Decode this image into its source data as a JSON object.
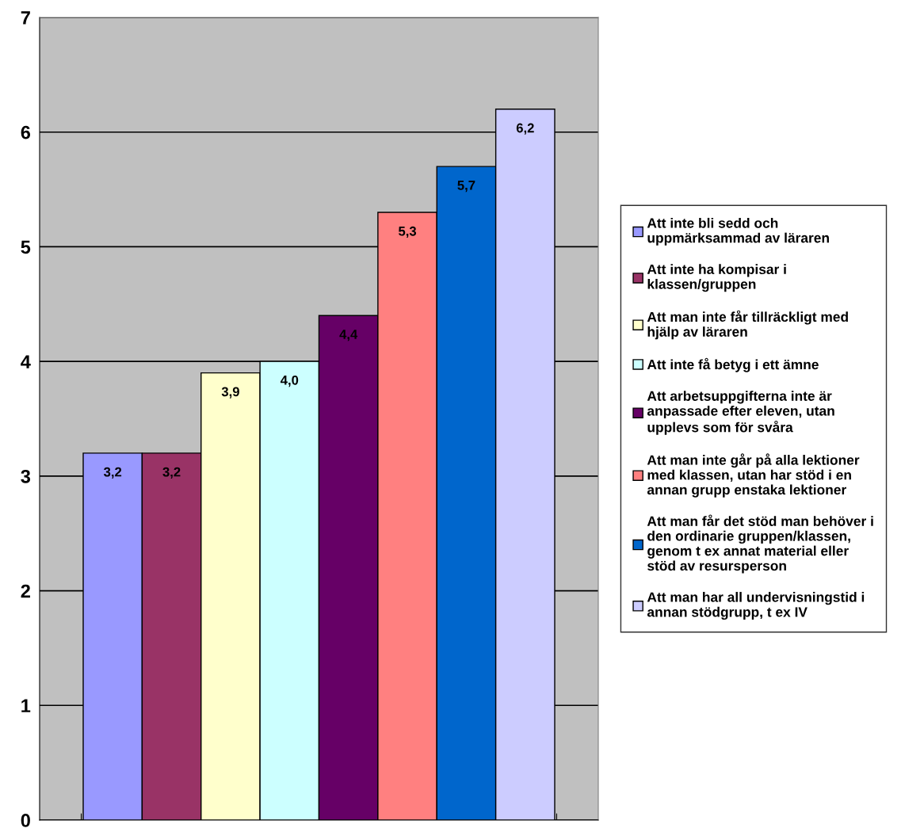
{
  "chart_data": {
    "type": "bar",
    "categories": [
      null
    ],
    "series": [
      {
        "name": "Att inte bli sedd och\nuppmärksammad av läraren",
        "color": "#9999ff",
        "values": [
          3.2
        ],
        "value_labels": [
          "3,2"
        ]
      },
      {
        "name": "Att inte ha kompisar i\nklassen/gruppen",
        "color": "#993366",
        "values": [
          3.2
        ],
        "value_labels": [
          "3,2"
        ]
      },
      {
        "name": "Att man inte får tillräckligt med\nhjälp av läraren",
        "color": "#ffffcc",
        "values": [
          3.9
        ],
        "value_labels": [
          "3,9"
        ]
      },
      {
        "name": "Att inte få betyg i ett ämne",
        "color": "#ccffff",
        "values": [
          4.0
        ],
        "value_labels": [
          "4,0"
        ]
      },
      {
        "name": "Att arbetsuppgifterna inte är\nanpassade efter eleven, utan\nupplevs som för svåra",
        "color": "#660066",
        "values": [
          4.4
        ],
        "value_labels": [
          "4,4"
        ]
      },
      {
        "name": "Att man inte går på alla lektioner\nmed klassen, utan har stöd i en\nannan grupp enstaka lektioner",
        "color": "#ff8080",
        "values": [
          5.3
        ],
        "value_labels": [
          "5,3"
        ]
      },
      {
        "name": "Att man får det stöd man behöver i\nden ordinarie gruppen/klassen,\ngenom t ex annat material eller\nstöd av resursperson",
        "color": "#0066cc",
        "values": [
          5.7
        ],
        "value_labels": [
          "5,7"
        ]
      },
      {
        "name": "Att man har all undervisningstid i\nannan stödgrupp, t ex IV",
        "color": "#ccccff",
        "values": [
          6.2
        ],
        "value_labels": [
          "6,2"
        ]
      }
    ],
    "ylim": [
      0,
      7
    ],
    "yticks": [
      0,
      1,
      2,
      3,
      4,
      5,
      6,
      7
    ],
    "grid": "y",
    "legend": "right"
  }
}
